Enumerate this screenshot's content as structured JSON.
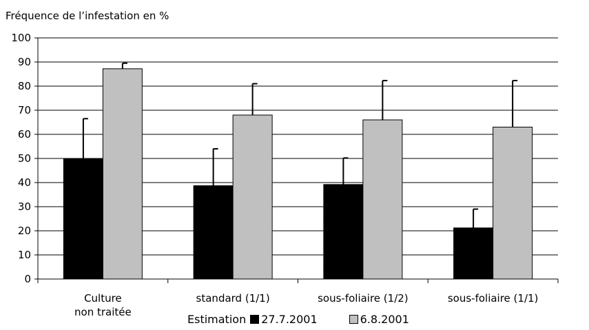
{
  "chart_data": {
    "type": "bar",
    "ylabel": "Fréquence de l’infestation en %",
    "ylim": [
      0,
      100
    ],
    "yticks": [
      0,
      10,
      20,
      30,
      40,
      50,
      60,
      70,
      80,
      90,
      100
    ],
    "grid": true,
    "categories": [
      "Culture\nnon traitée",
      "standard (1/1)",
      "sous-foliaire (1/2)",
      "sous-foliaire (1/1)"
    ],
    "series": [
      {
        "name": "27.7.2001",
        "values": [
          50,
          38.7,
          39.2,
          21.2
        ],
        "error_upper": [
          66.5,
          54,
          50.2,
          29
        ],
        "color": "#000000"
      },
      {
        "name": "6.8.2001",
        "values": [
          87.2,
          68,
          66,
          63
        ],
        "error_upper": [
          89.5,
          81,
          82.3,
          82.3
        ],
        "color": "#c0c0c0"
      }
    ],
    "legend": {
      "title": "Estimation",
      "placement": "bottom"
    }
  }
}
